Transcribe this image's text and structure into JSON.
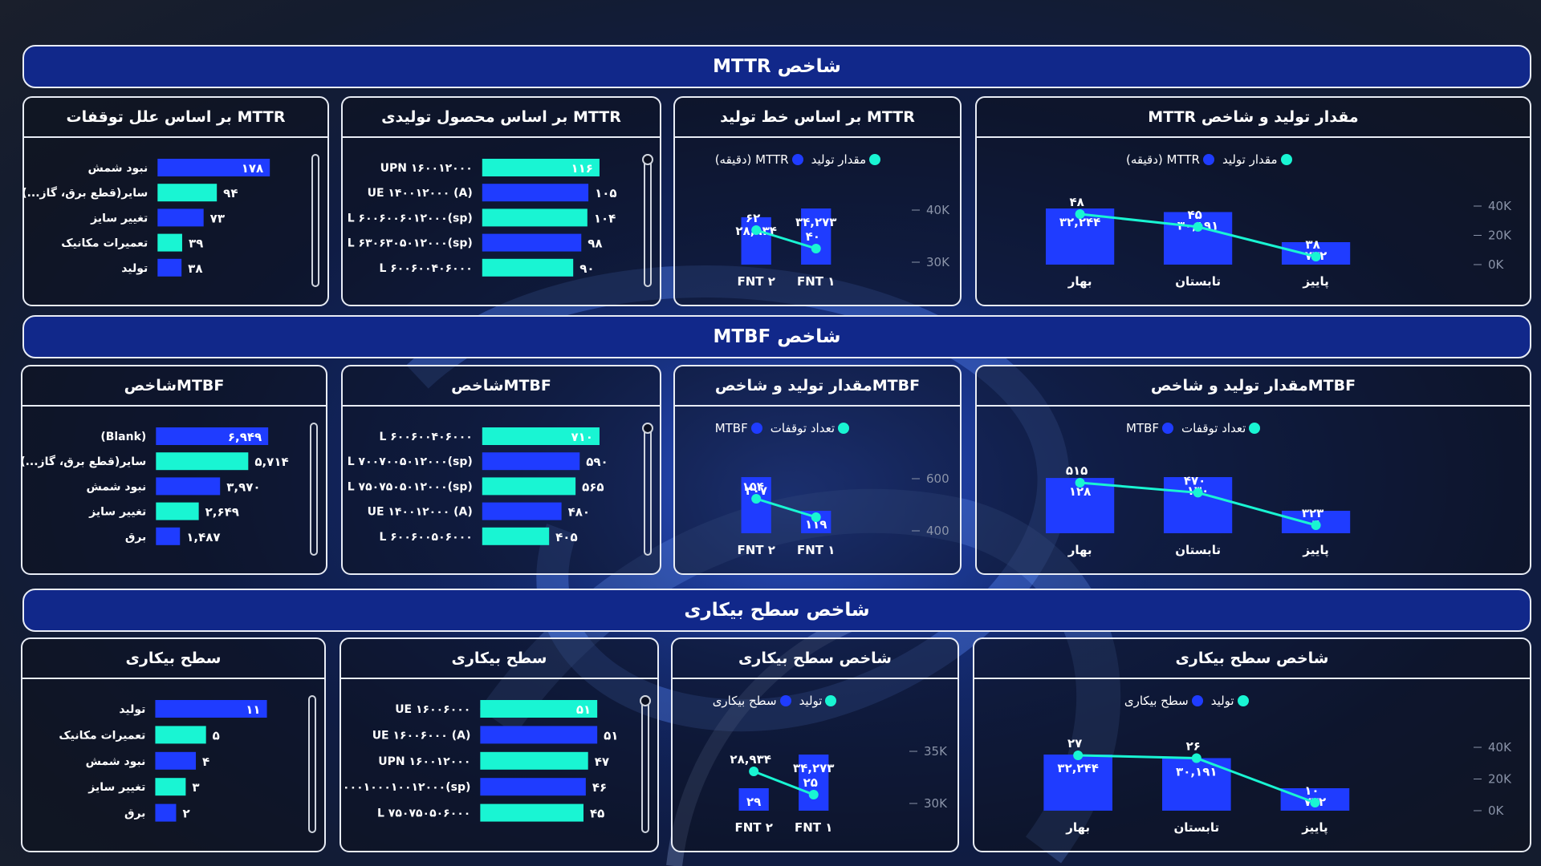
{
  "colors": {
    "blue": "#1f3cff",
    "cyan": "#19f5d3",
    "banner": "#11288a"
  },
  "banners": {
    "mttr": "MTTR شاخص",
    "mtbf": "MTBF شاخص",
    "idle": "شاخص سطح بیکاری"
  },
  "chart_data": [
    {
      "id": "mttr-season",
      "type": "bar+line",
      "title": "MTTR  مقدار تولید و شاخص",
      "legend": [
        "مقدار تولید",
        "MTTR (دقیقه)"
      ],
      "categories": [
        "بهار",
        "تابستان",
        "پاییز"
      ],
      "bars": {
        "name": "MTTR (دقیقه)",
        "values": [
          32244,
          30191,
          772
        ],
        "labels": [
          "۳۲,۲۴۴",
          "۳۰,۱۹۱",
          "۷۷۲"
        ]
      },
      "line": {
        "name": "مقدار تولید",
        "values": [
          48,
          45,
          38
        ],
        "labels": [
          "۴۸",
          "۴۵",
          "۳۸"
        ]
      },
      "yticks": [
        "40K",
        "20K",
        "0K"
      ]
    },
    {
      "id": "mttr-line",
      "type": "bar+line",
      "title": "بر اساس خط تولید MTTR",
      "legend": [
        "مقدار تولید",
        "MTTR (دقیقه)"
      ],
      "categories": [
        "FNT ۲",
        "FNT ۱"
      ],
      "bars": {
        "values": [
          28934,
          34273
        ],
        "labels": [
          "۲۸,۹۳۴",
          "۳۴,۲۷۳"
        ]
      },
      "line": {
        "values": [
          62,
          40
        ],
        "labels": [
          "۶۲",
          "۴۰"
        ]
      },
      "yticks": [
        "40K",
        "30K"
      ]
    },
    {
      "id": "mttr-product",
      "type": "hbar",
      "title": "بر اساس محصول تولیدی MTTR",
      "categories": [
        "UPN ۱۶۰۰۱۲۰۰۰",
        "UE ۱۴۰۰۱۲۰۰۰ (A)",
        "L ۶۰۰۶۰۰۶۰۱۲۰۰۰(sp)",
        "L ۶۳۰۶۳۰۵۰۱۲۰۰۰(sp)",
        "L ۶۰۰۶۰۰۴۰۶۰۰۰"
      ],
      "values": [
        116,
        105,
        104,
        98,
        90
      ],
      "labels": [
        "۱۱۶",
        "۱۰۵",
        "۱۰۴",
        "۹۸",
        "۹۰"
      ],
      "colors": [
        "cyan",
        "blue",
        "cyan",
        "blue",
        "cyan"
      ]
    },
    {
      "id": "mttr-cause",
      "type": "hbar",
      "title": "بر اساس علل توقفات MTTR",
      "categories": [
        "نبود شمش",
        "سایر(قطع برق، گاز...)",
        "تغییر سایز",
        "تعمیرات مکانیک",
        "تولید"
      ],
      "values": [
        178,
        94,
        73,
        39,
        38
      ],
      "labels": [
        "۱۷۸",
        "۹۴",
        "۷۳",
        "۳۹",
        "۳۸"
      ],
      "colors": [
        "blue",
        "cyan",
        "blue",
        "cyan",
        "blue"
      ]
    },
    {
      "id": "mtbf-season",
      "type": "bar+line",
      "title": "مقدار تولید و شاخصMTBF",
      "legend": [
        "تعداد توقفات",
        "MTBF"
      ],
      "categories": [
        "بهار",
        "تابستان",
        "پاییز"
      ],
      "bars": {
        "values": [
          128,
          130,
          4
        ],
        "labels": [
          "۱۲۸",
          "۱۳۰",
          "۴"
        ]
      },
      "line": {
        "values": [
          515,
          470,
          323
        ],
        "labels": [
          "۵۱۵",
          "۴۷۰",
          "۳۲۳"
        ]
      }
    },
    {
      "id": "mtbf-line",
      "type": "bar+line",
      "title": "مقدار تولید و شاخصMTBF",
      "legend": [
        "تعداد توقفات",
        "MTBF"
      ],
      "categories": [
        "FNT ۲",
        "FNT ۱"
      ],
      "bars": {
        "values": [
          307,
          119
        ],
        "labels": [
          "۳۰۷",
          "۱۱۹"
        ]
      },
      "line": {
        "values": [
          154,
          119
        ],
        "labels": [
          "۱۵۴",
          ""
        ]
      },
      "yticks": [
        "600",
        "400"
      ]
    },
    {
      "id": "mtbf-product",
      "type": "hbar",
      "title": "شاخصMTBF",
      "categories": [
        "L ۶۰۰۶۰۰۴۰۶۰۰۰",
        "L ۷۰۰۷۰۰۵۰۱۲۰۰۰(sp)",
        "L ۷۵۰۷۵۰۵۰۱۲۰۰۰(sp)",
        "UE ۱۴۰۰۱۲۰۰۰ (A)",
        "L ۶۰۰۶۰۰۵۰۶۰۰۰"
      ],
      "values": [
        710,
        590,
        565,
        480,
        405
      ],
      "labels": [
        "۷۱۰",
        "۵۹۰",
        "۵۶۵",
        "۴۸۰",
        "۴۰۵"
      ],
      "colors": [
        "cyan",
        "blue",
        "cyan",
        "blue",
        "cyan"
      ]
    },
    {
      "id": "mtbf-cause",
      "type": "hbar",
      "title": "شاخصMTBF",
      "categories": [
        "(Blank)",
        "سایر(قطع برق، گاز...)",
        "نبود شمش",
        "تغییر سایز",
        "برق"
      ],
      "values": [
        6949,
        5714,
        3970,
        2649,
        1487
      ],
      "labels": [
        "۶,۹۴۹",
        "۵,۷۱۴",
        "۳,۹۷۰",
        "۲,۶۴۹",
        "۱,۴۸۷"
      ],
      "colors": [
        "blue",
        "cyan",
        "blue",
        "cyan",
        "blue"
      ]
    },
    {
      "id": "idle-season",
      "type": "bar+line",
      "title": "شاخص سطح بیکاری",
      "legend": [
        "تولید",
        "سطح بیکاری"
      ],
      "categories": [
        "بهار",
        "تابستان",
        "پاییز"
      ],
      "bars": {
        "values": [
          32244,
          30191,
          772
        ],
        "labels": [
          "۳۲,۲۴۴",
          "۳۰,۱۹۱",
          "۷۷۲"
        ]
      },
      "line": {
        "values": [
          27,
          26,
          10
        ],
        "labels": [
          "۲۷",
          "۲۶",
          "۱۰"
        ]
      },
      "yticks": [
        "40K",
        "20K",
        "0K"
      ]
    },
    {
      "id": "idle-line",
      "type": "bar+line",
      "title": "شاخص سطح بیکاری",
      "legend": [
        "تولید",
        "سطح بیکاری"
      ],
      "categories": [
        "FNT ۲",
        "FNT ۱"
      ],
      "bars": {
        "values": [
          29,
          34273
        ],
        "labels": [
          "۲۹",
          "۳۴,۲۷۳"
        ]
      },
      "line": {
        "values": [
          28934,
          25
        ],
        "labels": [
          "۲۸,۹۳۴",
          "۲۵"
        ]
      },
      "yticks": [
        "35K",
        "30K"
      ]
    },
    {
      "id": "idle-product",
      "type": "hbar",
      "title": "سطح بیکاری",
      "categories": [
        "UE ۱۶۰۰۶۰۰۰",
        "UE ۱۶۰۰۶۰۰۰ (A)",
        "UPN ۱۶۰۰۱۲۰۰۰",
        "L ۱۰۰۰۱۰۰۰۱۰۰۱۲۰۰۰(sp)",
        "L ۷۵۰۷۵۰۵۰۶۰۰۰"
      ],
      "values": [
        51,
        51,
        47,
        46,
        45
      ],
      "labels": [
        "۵۱",
        "۵۱",
        "۴۷",
        "۴۶",
        "۴۵"
      ],
      "colors": [
        "cyan",
        "blue",
        "cyan",
        "blue",
        "cyan"
      ]
    },
    {
      "id": "idle-cause",
      "type": "hbar",
      "title": "سطح بیکاری",
      "categories": [
        "تولید",
        "تعمیرات مکانیک",
        "نبود شمش",
        "تغییر سایز",
        "برق"
      ],
      "values": [
        11,
        5,
        4,
        3,
        2
      ],
      "labels": [
        "۱۱",
        "۵",
        "۴",
        "۳",
        "۲"
      ],
      "colors": [
        "blue",
        "cyan",
        "blue",
        "cyan",
        "blue"
      ]
    }
  ]
}
